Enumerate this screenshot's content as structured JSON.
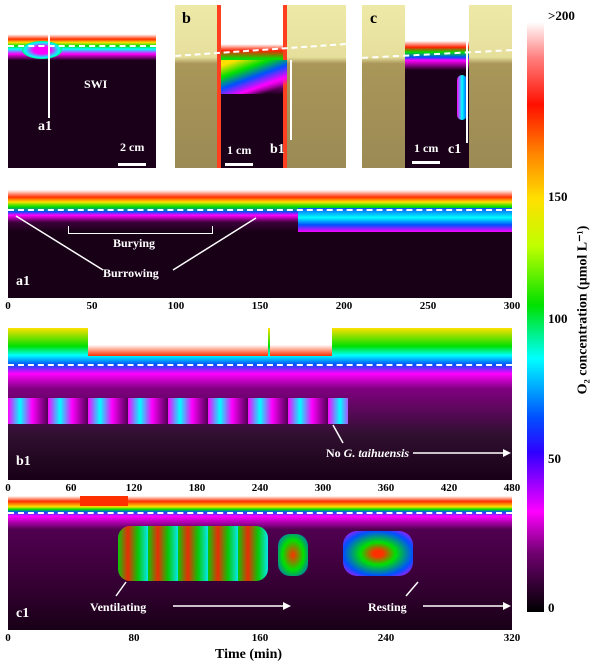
{
  "panels": {
    "a": {
      "label": "a",
      "profile": "a1",
      "scale": "2 cm",
      "swi": "SWI"
    },
    "b": {
      "label": "b",
      "profile": "b1",
      "scale": "1 cm"
    },
    "c": {
      "label": "c",
      "profile": "c1",
      "scale": "1 cm"
    }
  },
  "colorbar": {
    "title": "O₂ concentration (μmol L⁻¹)",
    "ticks": [
      ">200",
      "150",
      "100",
      "50",
      "0"
    ],
    "stops": [
      "#ffffff",
      "#ff1000",
      "#ffe000",
      "#00e000",
      "#00ffff",
      "#0050ff",
      "#ff00ff",
      "#000000"
    ]
  },
  "chart_data": [
    {
      "type": "heatmap",
      "name": "a1",
      "xlabel": "Time (min)",
      "xlim": [
        0,
        300
      ],
      "xticks": [
        "0",
        "50",
        "100",
        "150",
        "200",
        "250",
        "300"
      ],
      "annotations": {
        "profile": "a1",
        "bury": "Burying",
        "burrow": "Burrowing"
      }
    },
    {
      "type": "heatmap",
      "name": "b1",
      "xlabel": "Time (min)",
      "xlim": [
        0,
        480
      ],
      "xticks": [
        "0",
        "60",
        "120",
        "180",
        "240",
        "300",
        "360",
        "420",
        "480"
      ],
      "annotations": {
        "profile": "b1",
        "absent_prefix": "No ",
        "absent_species": "G. taihuensis"
      }
    },
    {
      "type": "heatmap",
      "name": "c1",
      "xlabel": "Time (min)",
      "xlim": [
        0,
        320
      ],
      "xticks": [
        "0",
        "80",
        "160",
        "240",
        "320"
      ],
      "annotations": {
        "profile": "c1",
        "vent": "Ventilating",
        "rest": "Resting"
      }
    }
  ],
  "xaxis_title": "Time (min)"
}
